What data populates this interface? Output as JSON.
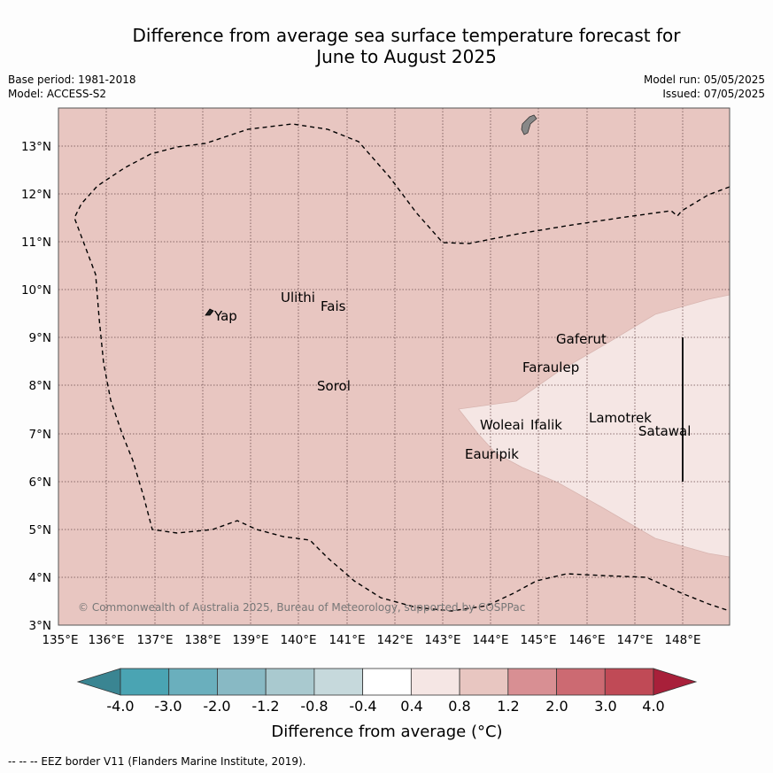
{
  "title_line1": "Difference from average sea surface temperature forecast for",
  "title_line2": "June to August 2025",
  "base_period": "Base period: 1981-2018",
  "model": "Model: ACCESS-S2",
  "model_run": "Model run: 05/05/2025",
  "issued": "Issued: 07/05/2025",
  "lat_labels": [
    "13°N",
    "12°N",
    "11°N",
    "10°N",
    "9°N",
    "8°N",
    "7°N",
    "6°N",
    "5°N",
    "4°N",
    "3°N"
  ],
  "lon_labels": [
    "135°E",
    "136°E",
    "137°E",
    "138°E",
    "139°E",
    "140°E",
    "141°E",
    "142°E",
    "143°E",
    "144°E",
    "145°E",
    "146°E",
    "147°E",
    "148°E"
  ],
  "islands": {
    "yap": "Yap",
    "ulithi": "Ulithi",
    "fais": "Fais",
    "sorol": "Sorol",
    "gaferut": "Gaferut",
    "faraulep": "Faraulep",
    "lamotrek": "Lamotrek",
    "woleai": "Woleai",
    "ifalik": "Ifalik",
    "satawal": "Satawal",
    "eauripik": "Eauripik"
  },
  "copyright": "© Commonwealth of Australia 2025, Bureau of Meteorology, supported by COSPPac",
  "colorbar": {
    "ticks": [
      "-4.0",
      "-3.0",
      "-2.0",
      "-1.2",
      "-0.8",
      "-0.4",
      "0.4",
      "0.8",
      "1.2",
      "2.0",
      "3.0",
      "4.0"
    ],
    "colors": [
      "#3a8592",
      "#4aa4b3",
      "#6aafbd",
      "#88b9c4",
      "#a9c9cf",
      "#c6d9dc",
      "#ffffff",
      "#f5e6e4",
      "#e8c6c1",
      "#d88f93",
      "#cc6a72",
      "#c04a56",
      "#a8203a"
    ],
    "label": "Difference from average (°C)"
  },
  "map_colors": {
    "base": "#e8c6c1",
    "warm_light": "#f5e6e4"
  },
  "footer": "--  --  -- EEZ border V11 (Flanders Marine Institute, 2019)."
}
